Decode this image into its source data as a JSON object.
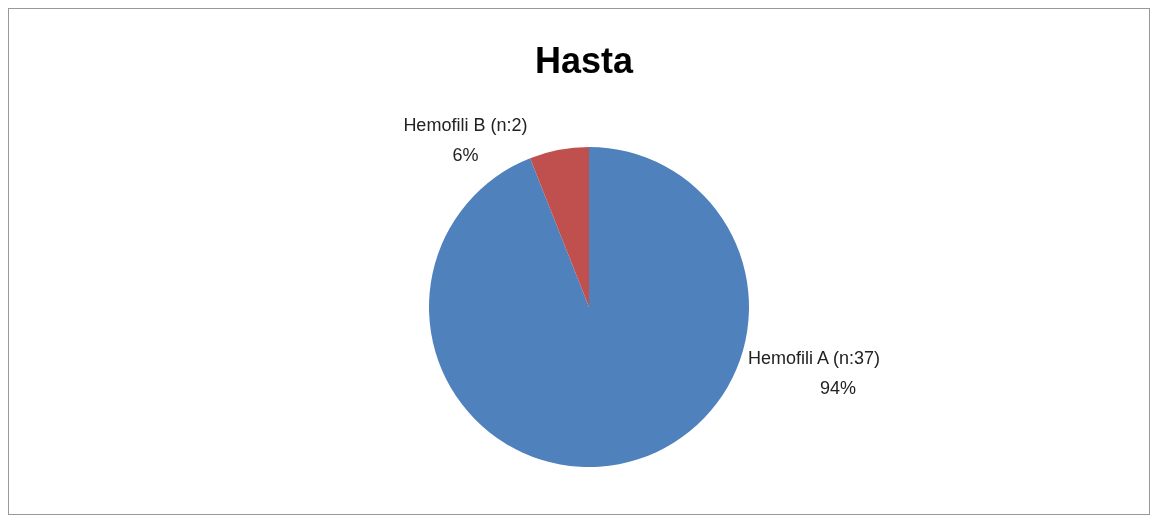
{
  "chart_data": {
    "type": "pie",
    "title": "Hasta",
    "categories": [
      "Hemofili A (n:37)",
      "Hemofili B (n:2)"
    ],
    "values": [
      94,
      6
    ],
    "colors": [
      "#4f81bd",
      "#c0504d"
    ],
    "value_labels": [
      "94%",
      "6%"
    ],
    "legend": false
  }
}
